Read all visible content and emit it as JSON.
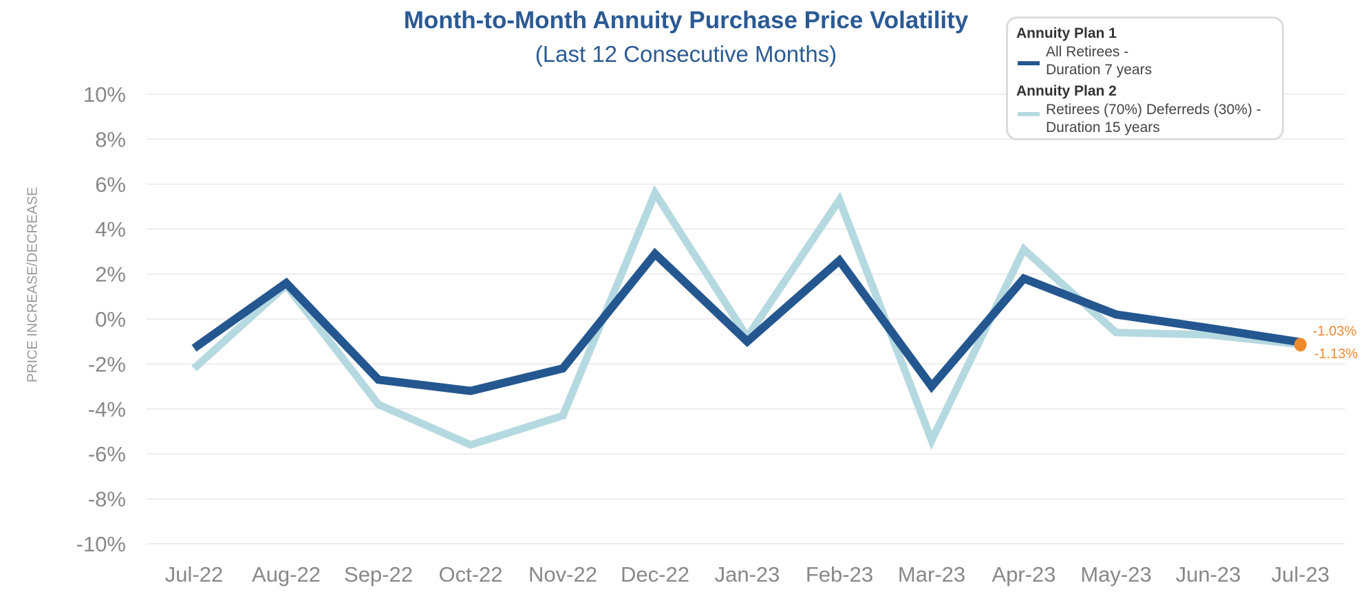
{
  "chart_data": {
    "type": "line",
    "title": "Month-to-Month Annuity Purchase Price Volatility",
    "subtitle": "(Last 12 Consecutive Months)",
    "xlabel": "",
    "ylabel": "PRICE INCREASE/DECREASE",
    "ylim": [
      -10,
      10
    ],
    "yticks": [
      "10%",
      "8%",
      "6%",
      "4%",
      "2%",
      "0%",
      "-2%",
      "-4%",
      "-6%",
      "-8%",
      "-10%"
    ],
    "ytick_values": [
      10,
      8,
      6,
      4,
      2,
      0,
      -2,
      -4,
      -6,
      -8,
      -10
    ],
    "grid": true,
    "categories": [
      "Jul-22",
      "Aug-22",
      "Sep-22",
      "Oct-22",
      "Nov-22",
      "Dec-22",
      "Jan-23",
      "Feb-23",
      "Mar-23",
      "Apr-23",
      "May-23",
      "Jun-23",
      "Jul-23"
    ],
    "series": [
      {
        "name": "Annuity Plan 1",
        "legend_line1": "All Retirees -",
        "legend_line2": "Duration 7 years",
        "color": "#24578f",
        "values": [
          -1.3,
          1.6,
          -2.7,
          -3.2,
          -2.2,
          2.9,
          -1.0,
          2.6,
          -3.0,
          1.8,
          0.2,
          -0.4,
          -1.03
        ]
      },
      {
        "name": "Annuity Plan 2",
        "legend_line1": "Retirees (70%) Deferreds (30%) -",
        "legend_line2": "Duration 15 years",
        "color": "#b5d9e0",
        "values": [
          -2.2,
          1.5,
          -3.8,
          -5.6,
          -4.3,
          5.6,
          -0.8,
          5.3,
          -5.4,
          3.1,
          -0.6,
          -0.7,
          -1.13
        ]
      }
    ],
    "annotations": {
      "color": "#ee8a2d",
      "plan1_last": "-1.03%",
      "plan2_last": "-1.13%"
    },
    "legend_position": "top-right"
  }
}
